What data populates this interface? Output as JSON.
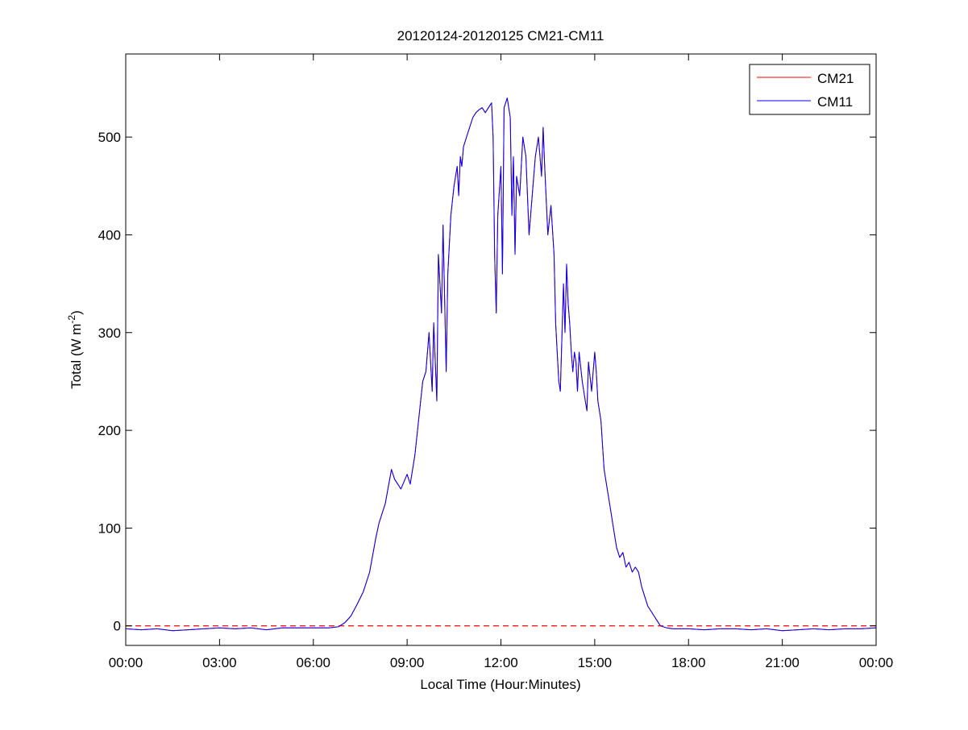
{
  "chart_data": {
    "type": "line",
    "title": "20120124-20120125 CM21-CM11",
    "xlabel": "Local Time (Hour:Minutes)",
    "ylabel_main": "Total (W m",
    "ylabel_sup": "-2",
    "ylabel_close": ")",
    "xlim": [
      0,
      24
    ],
    "ylim": [
      -20,
      585
    ],
    "xticks": [
      0,
      3,
      6,
      9,
      12,
      15,
      18,
      21,
      24
    ],
    "xtick_labels": [
      "00:00",
      "03:00",
      "06:00",
      "09:00",
      "12:00",
      "15:00",
      "18:00",
      "21:00",
      "00:00"
    ],
    "yticks": [
      0,
      100,
      200,
      300,
      400,
      500
    ],
    "ytick_labels": [
      "0",
      "100",
      "200",
      "300",
      "400",
      "500"
    ],
    "legend_position": "top-right",
    "reference_line": {
      "y": 0,
      "style": "dashed",
      "color": "#ff0000"
    },
    "series": [
      {
        "name": "CM21",
        "color": "#ff0000",
        "x": [
          0,
          0.5,
          1.0,
          1.5,
          2.0,
          2.5,
          3.0,
          3.5,
          4.0,
          4.5,
          5.0,
          5.5,
          6.0,
          6.5,
          6.8,
          7.0,
          7.2,
          7.4,
          7.6,
          7.8,
          8.0,
          8.1,
          8.3,
          8.5,
          8.6,
          8.7,
          8.8,
          9.0,
          9.1,
          9.25,
          9.4,
          9.5,
          9.6,
          9.7,
          9.8,
          9.85,
          9.95,
          10.0,
          10.1,
          10.15,
          10.25,
          10.3,
          10.4,
          10.5,
          10.6,
          10.65,
          10.7,
          10.75,
          10.8,
          10.9,
          11.0,
          11.1,
          11.2,
          11.3,
          11.4,
          11.5,
          11.6,
          11.7,
          11.75,
          11.8,
          11.85,
          11.9,
          12.0,
          12.05,
          12.1,
          12.2,
          12.3,
          12.35,
          12.4,
          12.45,
          12.5,
          12.6,
          12.7,
          12.8,
          12.9,
          13.0,
          13.1,
          13.2,
          13.3,
          13.35,
          13.4,
          13.5,
          13.6,
          13.7,
          13.75,
          13.8,
          13.85,
          13.9,
          14.0,
          14.05,
          14.1,
          14.15,
          14.2,
          14.25,
          14.3,
          14.35,
          14.4,
          14.45,
          14.5,
          14.6,
          14.7,
          14.75,
          14.8,
          14.9,
          15.0,
          15.05,
          15.1,
          15.2,
          15.3,
          15.4,
          15.5,
          15.6,
          15.7,
          15.8,
          15.9,
          16.0,
          16.1,
          16.2,
          16.3,
          16.4,
          16.5,
          16.6,
          16.7,
          16.8,
          16.9,
          17.0,
          17.1,
          17.3,
          17.5,
          17.8,
          18.0,
          18.5,
          19.0,
          19.5,
          20.0,
          20.5,
          21.0,
          21.5,
          22.0,
          22.5,
          23.0,
          23.5,
          24.0
        ],
        "y": [
          -3,
          -4,
          -3,
          -5,
          -4,
          -3,
          -2,
          -3,
          -2,
          -4,
          -2,
          -2,
          -2,
          -2,
          -1,
          3,
          10,
          22,
          35,
          55,
          90,
          105,
          125,
          160,
          150,
          145,
          140,
          155,
          145,
          175,
          220,
          250,
          260,
          300,
          240,
          310,
          230,
          380,
          320,
          410,
          260,
          360,
          420,
          450,
          470,
          440,
          480,
          470,
          490,
          500,
          510,
          520,
          525,
          528,
          530,
          525,
          530,
          535,
          500,
          380,
          320,
          420,
          470,
          360,
          530,
          540,
          520,
          420,
          480,
          380,
          460,
          440,
          500,
          480,
          400,
          440,
          480,
          500,
          460,
          510,
          470,
          400,
          430,
          380,
          310,
          280,
          250,
          240,
          350,
          300,
          370,
          330,
          310,
          280,
          260,
          280,
          270,
          240,
          280,
          250,
          230,
          220,
          270,
          240,
          280,
          260,
          230,
          210,
          160,
          140,
          120,
          100,
          80,
          70,
          75,
          60,
          65,
          55,
          60,
          55,
          40,
          30,
          20,
          15,
          10,
          5,
          0,
          -2,
          -3,
          -3,
          -3,
          -4,
          -3,
          -3,
          -4,
          -3,
          -5,
          -4,
          -3,
          -4,
          -3,
          -3,
          -2
        ],
        "line": "solid"
      },
      {
        "name": "CM11",
        "color": "#0000ff",
        "x": [
          0,
          0.5,
          1.0,
          1.5,
          2.0,
          2.5,
          3.0,
          3.5,
          4.0,
          4.5,
          5.0,
          5.5,
          6.0,
          6.5,
          6.8,
          7.0,
          7.2,
          7.4,
          7.6,
          7.8,
          8.0,
          8.1,
          8.3,
          8.5,
          8.6,
          8.7,
          8.8,
          9.0,
          9.1,
          9.25,
          9.4,
          9.5,
          9.6,
          9.7,
          9.8,
          9.85,
          9.95,
          10.0,
          10.1,
          10.15,
          10.25,
          10.3,
          10.4,
          10.5,
          10.6,
          10.65,
          10.7,
          10.75,
          10.8,
          10.9,
          11.0,
          11.1,
          11.2,
          11.3,
          11.4,
          11.5,
          11.6,
          11.7,
          11.75,
          11.8,
          11.85,
          11.9,
          12.0,
          12.05,
          12.1,
          12.2,
          12.3,
          12.35,
          12.4,
          12.45,
          12.5,
          12.6,
          12.7,
          12.8,
          12.9,
          13.0,
          13.1,
          13.2,
          13.3,
          13.35,
          13.4,
          13.5,
          13.6,
          13.7,
          13.75,
          13.8,
          13.85,
          13.9,
          14.0,
          14.05,
          14.1,
          14.15,
          14.2,
          14.25,
          14.3,
          14.35,
          14.4,
          14.45,
          14.5,
          14.6,
          14.7,
          14.75,
          14.8,
          14.9,
          15.0,
          15.05,
          15.1,
          15.2,
          15.3,
          15.4,
          15.5,
          15.6,
          15.7,
          15.8,
          15.9,
          16.0,
          16.1,
          16.2,
          16.3,
          16.4,
          16.5,
          16.6,
          16.7,
          16.8,
          16.9,
          17.0,
          17.1,
          17.3,
          17.5,
          17.8,
          18.0,
          18.5,
          19.0,
          19.5,
          20.0,
          20.5,
          21.0,
          21.5,
          22.0,
          22.5,
          23.0,
          23.5,
          24.0
        ],
        "y": [
          -3,
          -4,
          -3,
          -5,
          -4,
          -3,
          -2,
          -3,
          -2,
          -4,
          -2,
          -2,
          -2,
          -2,
          -1,
          3,
          10,
          22,
          35,
          55,
          90,
          105,
          125,
          160,
          150,
          145,
          140,
          155,
          145,
          175,
          220,
          250,
          260,
          300,
          240,
          310,
          230,
          380,
          320,
          410,
          260,
          360,
          420,
          450,
          470,
          440,
          480,
          470,
          490,
          500,
          510,
          520,
          525,
          528,
          530,
          525,
          530,
          535,
          500,
          380,
          320,
          420,
          470,
          360,
          530,
          540,
          520,
          420,
          480,
          380,
          460,
          440,
          500,
          480,
          400,
          440,
          480,
          500,
          460,
          510,
          470,
          400,
          430,
          380,
          310,
          280,
          250,
          240,
          350,
          300,
          370,
          330,
          310,
          280,
          260,
          280,
          270,
          240,
          280,
          250,
          230,
          220,
          270,
          240,
          280,
          260,
          230,
          210,
          160,
          140,
          120,
          100,
          80,
          70,
          75,
          60,
          65,
          55,
          60,
          55,
          40,
          30,
          20,
          15,
          10,
          5,
          0,
          -2,
          -3,
          -3,
          -3,
          -4,
          -3,
          -3,
          -4,
          -3,
          -5,
          -4,
          -3,
          -4,
          -3,
          -3,
          -2
        ],
        "line": "solid"
      }
    ]
  }
}
